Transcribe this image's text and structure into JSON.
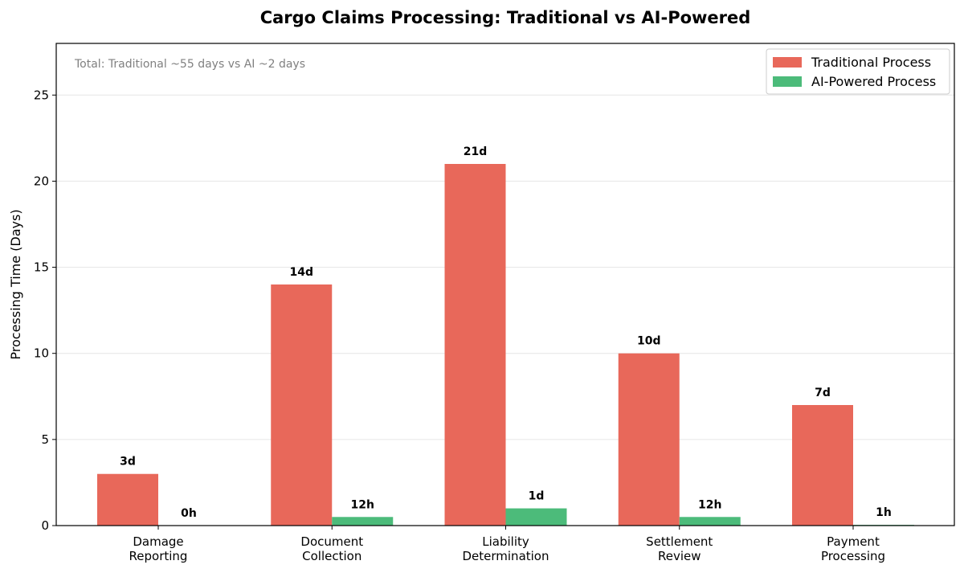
{
  "chart_data": {
    "type": "bar",
    "title": "Cargo Claims Processing: Traditional vs AI-Powered",
    "annotation": "Total: Traditional ~55 days vs AI ~2 days",
    "xlabel": "",
    "ylabel": "Processing Time (Days)",
    "ylim": [
      0,
      28
    ],
    "yticks": [
      0,
      5,
      10,
      15,
      20,
      25
    ],
    "grid": "y",
    "legend_position": "top-right",
    "categories": [
      [
        "Damage",
        "Reporting"
      ],
      [
        "Document",
        "Collection"
      ],
      [
        "Liability",
        "Determination"
      ],
      [
        "Settlement",
        "Review"
      ],
      [
        "Payment",
        "Processing"
      ]
    ],
    "series": [
      {
        "name": "Traditional Process",
        "color": "#E8685A",
        "values": [
          3,
          14,
          21,
          10,
          7
        ],
        "labels": [
          "3d",
          "14d",
          "21d",
          "10d",
          "7d"
        ]
      },
      {
        "name": "AI-Powered Process",
        "color": "#4CBB7A",
        "values": [
          0,
          0.5,
          1,
          0.5,
          0.042
        ],
        "labels": [
          "0h",
          "12h",
          "1d",
          "12h",
          "1h"
        ]
      }
    ]
  }
}
